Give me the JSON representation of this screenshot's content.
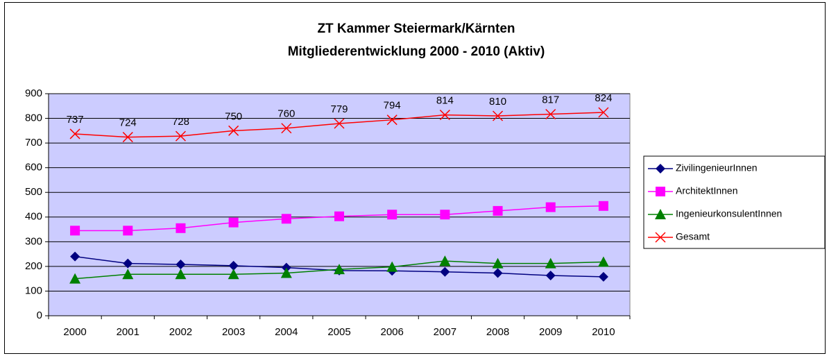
{
  "chart_data": {
    "type": "line",
    "title": "ZT Kammer Steiermark/Kärnten",
    "subtitle": "Mitgliederentwicklung 2000 - 2010 (Aktiv)",
    "categories": [
      "2000",
      "2001",
      "2002",
      "2003",
      "2004",
      "2005",
      "2006",
      "2007",
      "2008",
      "2009",
      "2010"
    ],
    "series": [
      {
        "name": "ZivilingenieurInnen",
        "color": "#000080",
        "marker": "diamond",
        "values": [
          240,
          212,
          208,
          203,
          195,
          183,
          182,
          178,
          173,
          163,
          158
        ]
      },
      {
        "name": "ArchitektInnen",
        "color": "#ff00ff",
        "marker": "square",
        "values": [
          345,
          345,
          355,
          378,
          393,
          403,
          410,
          410,
          425,
          440,
          445
        ]
      },
      {
        "name": "IngenieurkonsulentInnen",
        "color": "#008000",
        "marker": "triangle",
        "values": [
          150,
          168,
          168,
          168,
          173,
          188,
          198,
          222,
          212,
          212,
          218
        ]
      },
      {
        "name": "Gesamt",
        "color": "#ff0000",
        "marker": "x",
        "data_labels": true,
        "values": [
          737,
          724,
          728,
          750,
          760,
          779,
          794,
          814,
          810,
          817,
          824
        ]
      }
    ],
    "ylim": [
      0,
      900
    ],
    "yticks": [
      0,
      100,
      200,
      300,
      400,
      500,
      600,
      700,
      800,
      900
    ],
    "grid": true,
    "legend": "right",
    "plot_background": "#ccccff"
  }
}
